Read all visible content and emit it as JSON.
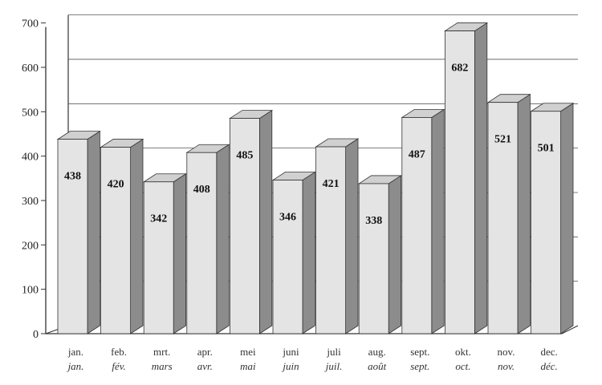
{
  "chart_data": {
    "type": "bar",
    "categories": [
      "jan.",
      "feb.",
      "mrt.",
      "apr.",
      "mei",
      "juni",
      "juli",
      "aug.",
      "sept.",
      "okt.",
      "nov.",
      "dec."
    ],
    "categories_fr": [
      "jan.",
      "fév.",
      "mars",
      "avr.",
      "mai",
      "juin",
      "juil.",
      "août",
      "sept.",
      "oct.",
      "nov.",
      "déc."
    ],
    "values": [
      438,
      420,
      342,
      408,
      485,
      346,
      421,
      338,
      487,
      682,
      521,
      501
    ],
    "yticks": [
      0,
      100,
      200,
      300,
      400,
      500,
      600,
      700
    ],
    "ylim": [
      0,
      700
    ],
    "title": "",
    "xlabel": "",
    "ylabel": "",
    "grid": true,
    "style": "3d-bar",
    "colors": {
      "bar_front": "#e4e4e4",
      "bar_side": "#8c8c8c",
      "bar_top": "#d0d0d0",
      "axis": "#333333",
      "grid": "#555555"
    }
  }
}
